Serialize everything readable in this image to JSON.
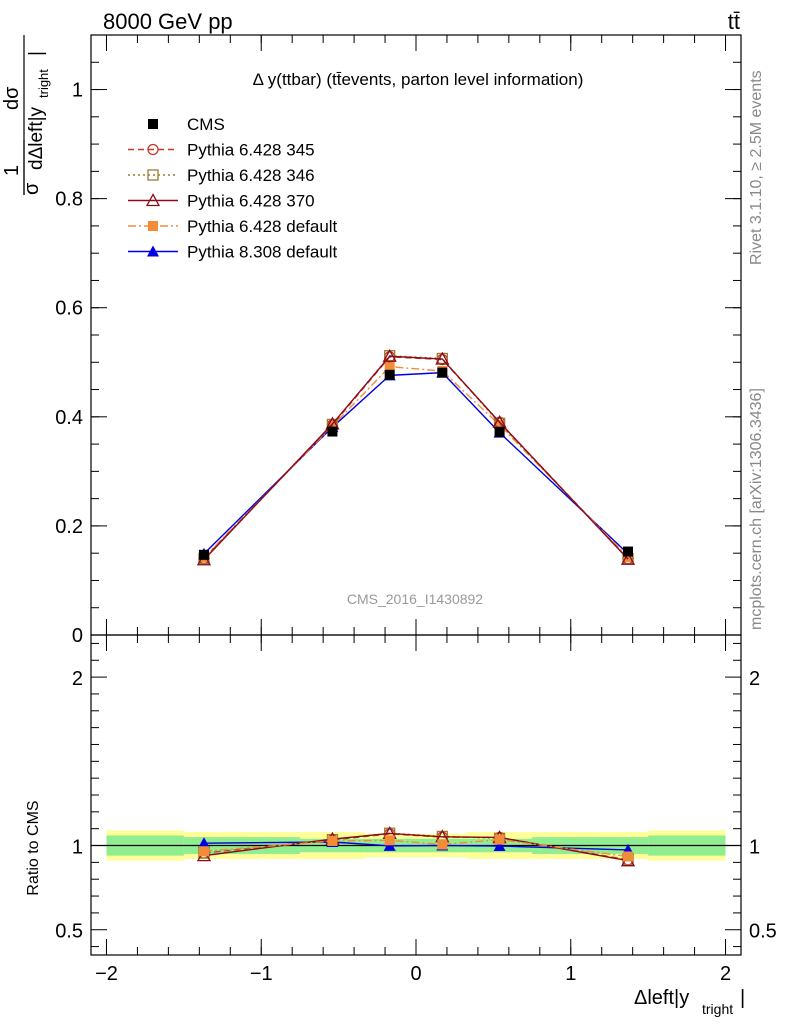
{
  "header": {
    "energy_label": "8000 GeV pp",
    "process_label": "tt̄"
  },
  "side_labels": {
    "rivet": "Rivet 3.1.10, ≥ 2.5M events",
    "mcplots": "mcplots.cern.ch [arXiv:1306.3436]"
  },
  "watermark": "CMS_2016_I1430892",
  "chart_data": [
    {
      "type": "line",
      "title": "Δ y(ttbar) (tt̄events, parton level information)",
      "ylabel": "1/σ dσ/dΔleft|y_tright|",
      "xlabel": "Δleft|y_tright|",
      "xlim": [
        -2.1,
        2.1
      ],
      "ylim": [
        0,
        1.1
      ],
      "x_ticks": [
        -2,
        -1,
        0,
        1,
        2
      ],
      "y_ticks": [
        0,
        0.2,
        0.4,
        0.6,
        0.8,
        1
      ],
      "y_tick_labels": [
        "0",
        "0.2",
        "0.4",
        "0.6",
        "0.8",
        "1"
      ],
      "legend_position": "top-left",
      "x": [
        -1.37,
        -0.54,
        -0.17,
        0.17,
        0.54,
        1.37
      ],
      "series": [
        {
          "name": "CMS",
          "color": "#000000",
          "marker": "square-filled",
          "line": "none",
          "values": [
            0.147,
            0.373,
            0.477,
            0.481,
            0.372,
            0.153
          ]
        },
        {
          "name": "Pythia 6.428 345",
          "color": "#c0392b",
          "marker": "circle-open",
          "line": "dashed",
          "values": [
            0.14,
            0.385,
            0.51,
            0.505,
            0.39,
            0.14
          ]
        },
        {
          "name": "Pythia 6.428 346",
          "color": "#9c7a36",
          "marker": "square-open",
          "line": "dotted",
          "values": [
            0.14,
            0.386,
            0.512,
            0.507,
            0.388,
            0.14
          ]
        },
        {
          "name": "Pythia 6.428 370",
          "color": "#8b0a1a",
          "marker": "triangle-open",
          "line": "solid",
          "values": [
            0.138,
            0.387,
            0.511,
            0.506,
            0.39,
            0.139
          ]
        },
        {
          "name": "Pythia 6.428 default",
          "color": "#f28c38",
          "marker": "square-filled",
          "line": "dashdot",
          "values": [
            0.142,
            0.383,
            0.492,
            0.484,
            0.385,
            0.143
          ]
        },
        {
          "name": "Pythia 8.308 default",
          "color": "#0000e0",
          "marker": "triangle-filled",
          "line": "solid",
          "values": [
            0.149,
            0.381,
            0.476,
            0.481,
            0.371,
            0.149
          ]
        }
      ]
    },
    {
      "type": "line",
      "ylabel": "Ratio to CMS",
      "xlabel": "Δleft|y_tright|",
      "xlim": [
        -2.1,
        2.1
      ],
      "ylim": [
        0.35,
        2.25
      ],
      "x_ticks": [
        -2,
        -1,
        0,
        1,
        2
      ],
      "x_tick_labels": [
        "−2",
        "−1",
        "0",
        "1",
        "2"
      ],
      "y_ticks": [
        0.5,
        1,
        2
      ],
      "y_tick_labels": [
        "0.5",
        "1",
        "2"
      ],
      "bands": {
        "x_edges": [
          -2,
          -1.5,
          -0.75,
          -0.33,
          0,
          0.33,
          0.75,
          1.5,
          2
        ],
        "inner": [
          0.06,
          0.05,
          0.04,
          0.04,
          0.04,
          0.04,
          0.05,
          0.06
        ],
        "outer": [
          0.09,
          0.08,
          0.08,
          0.07,
          0.07,
          0.08,
          0.08,
          0.09
        ],
        "inner_color": "#90ee90",
        "outer_color": "#ffff99"
      },
      "x": [
        -1.37,
        -0.54,
        -0.17,
        0.17,
        0.54,
        1.37
      ],
      "series": [
        {
          "name": "Pythia 6.428 345",
          "color": "#c0392b",
          "marker": "circle-open",
          "line": "dashed",
          "values": [
            0.955,
            1.033,
            1.069,
            1.05,
            1.048,
            0.915
          ]
        },
        {
          "name": "Pythia 6.428 346",
          "color": "#9c7a36",
          "marker": "square-open",
          "line": "dotted",
          "values": [
            0.955,
            1.035,
            1.073,
            1.054,
            1.043,
            0.915
          ]
        },
        {
          "name": "Pythia 6.428 370",
          "color": "#8b0a1a",
          "marker": "triangle-open",
          "line": "solid",
          "values": [
            0.94,
            1.038,
            1.072,
            1.052,
            1.048,
            0.91
          ]
        },
        {
          "name": "Pythia 6.428 default",
          "color": "#f28c38",
          "marker": "square-filled",
          "line": "dashdot",
          "values": [
            0.966,
            1.027,
            1.031,
            1.006,
            1.035,
            0.935
          ]
        },
        {
          "name": "Pythia 8.308 default",
          "color": "#0000e0",
          "marker": "triangle-filled",
          "line": "solid",
          "values": [
            1.014,
            1.021,
            0.998,
            1.0,
            0.997,
            0.974
          ]
        }
      ]
    }
  ]
}
